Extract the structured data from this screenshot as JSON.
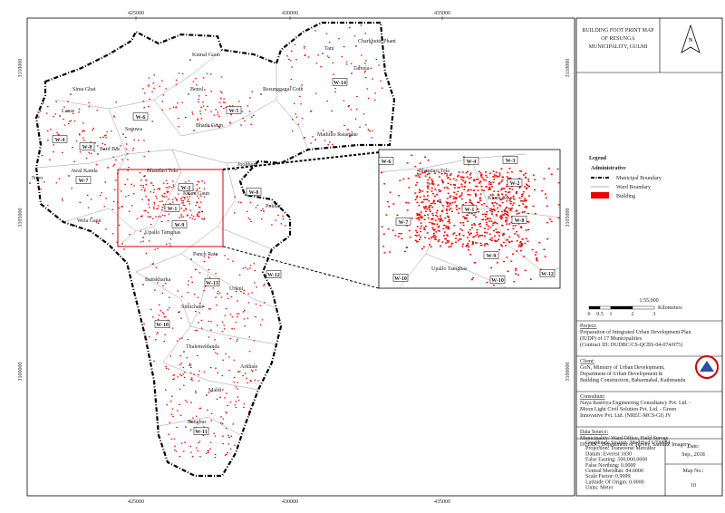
{
  "title": "BUILDING FOOT PRINT MAP OF RESUNGA MUNICIPALITY, GULMI",
  "north": "N",
  "grid": {
    "x": [
      "425000",
      "430000",
      "435000"
    ],
    "y": [
      "3110000",
      "3105000",
      "3100000"
    ]
  },
  "places": [
    "Charkhutte Phant",
    "Tam",
    "Tameta",
    "Kumal Gaun",
    "Benol",
    "Resunggagai Goth",
    "Sima Ghat",
    "Lanse",
    "Bhade Gaun",
    "Mathillo Ratamate",
    "Seguwa",
    "Bard Bas",
    "Awal Kanda",
    "Nuro",
    "Bhandari Tola",
    "Joolthum",
    "Khani Gaun",
    "Pokhar",
    "Wela Gaun",
    "Upallo Tamghas",
    "Panch Rate",
    "Banskharka",
    "Urleni",
    "Simichaur",
    "Thalemeldanda",
    "Arkhale",
    "Maldi",
    "Bangbas"
  ],
  "wards": [
    "W-4",
    "W-8",
    "W-6",
    "W-5",
    "W-14",
    "W-7",
    "W-2",
    "W-1",
    "W-8",
    "W-9",
    "W-12",
    "W-13",
    "W-10",
    "W-11"
  ],
  "inset": {
    "places": [
      "Bhandari Tola",
      "Khani Gaun",
      "Upallo Tamghas"
    ],
    "wards": [
      "W-6",
      "W-4",
      "W-3",
      "W-2",
      "W-8",
      "W-7",
      "W-1",
      "W-9",
      "W-10",
      "W-10",
      "W-12"
    ]
  },
  "legend": {
    "title": "Legend",
    "group": "Administrative",
    "items": [
      "Municipal Boundary",
      "Ward Boundary",
      "Building"
    ]
  },
  "scale": {
    "ratio": "1:55,000",
    "labels": [
      "0",
      "0.5",
      "1",
      "2",
      "3"
    ],
    "unit": "Kilometers"
  },
  "info": [
    {
      "heading": "Project:",
      "lines": [
        "Preparation of Integrated Urban Development Plan",
        "(IUDP) of 17 Municipalities",
        "(Contract ID: DUDBC/CS-QCBS-04-074/075)"
      ]
    },
    {
      "heading": "Client:",
      "lines": [
        "GoN, Ministry of Urban Development,",
        "Department of Urban Development &",
        "Building Construction, Babarmahal, Kathmandu"
      ]
    },
    {
      "heading": "Consultant:",
      "lines": [
        "Naya Rastriya Engineering Consultancy Pvt. Ltd. -",
        "Moon Light Civil Solution Pvt. Ltd. - Green",
        "Innovative Pvt. Ltd.  (NREC-MCS-GI) JV"
      ]
    },
    {
      "heading": "Data Source:",
      "lines": [
        "Municipality/ Ward Office, Field Survey",
        "DUDBC, Department of Survey, Satellite Imagery"
      ]
    }
  ],
  "coordinate_system": [
    "Coordinate System: Modified UTM 84",
    "Projection: Transverse Mercator",
    "Datum: Everest 1830",
    "False Easting: 500,000.0000",
    "False Northing: 0.0000",
    "Central Meridian: 84.0000",
    "Scale Factor: 0.9999",
    "Latitude Of Origin: 0.0000",
    "Units: Meter"
  ],
  "date": {
    "label": "Date:",
    "value": "Sep., 2018"
  },
  "map_no": {
    "label": "Map No.:",
    "value": "10"
  }
}
